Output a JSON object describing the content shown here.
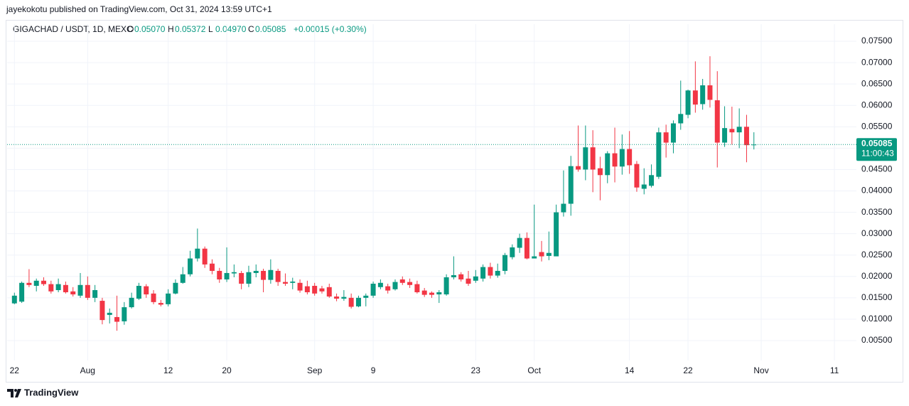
{
  "header": {
    "publisher": "jayekokotu published on TradingView.com, Oct 31, 2024 13:59 UTC+1",
    "logo_text": "TradingView"
  },
  "chart_data": {
    "type": "candlestick",
    "title": "GIGACHAD / USDT, 1D, MEXC",
    "ohlc_legend": [
      {
        "key": "O",
        "value": "0.05070"
      },
      {
        "key": "H",
        "value": "0.05372"
      },
      {
        "key": "L",
        "value": "0.04970"
      },
      {
        "key": "C",
        "value": "0.05085"
      }
    ],
    "change": "+0.00015 (+0.30%)",
    "up_color": "#089981",
    "down_color": "#f23645",
    "grid": true,
    "x": [
      "2024-07-22",
      "2024-07-23",
      "2024-07-24",
      "2024-07-25",
      "2024-07-26",
      "2024-07-27",
      "2024-07-28",
      "2024-07-29",
      "2024-07-30",
      "2024-07-31",
      "2024-08-01",
      "2024-08-02",
      "2024-08-03",
      "2024-08-04",
      "2024-08-05",
      "2024-08-06",
      "2024-08-07",
      "2024-08-08",
      "2024-08-09",
      "2024-08-10",
      "2024-08-11",
      "2024-08-12",
      "2024-08-13",
      "2024-08-14",
      "2024-08-15",
      "2024-08-16",
      "2024-08-17",
      "2024-08-18",
      "2024-08-19",
      "2024-08-20",
      "2024-08-21",
      "2024-08-22",
      "2024-08-23",
      "2024-08-24",
      "2024-08-25",
      "2024-08-26",
      "2024-08-27",
      "2024-08-28",
      "2024-08-29",
      "2024-08-30",
      "2024-08-31",
      "2024-09-01",
      "2024-09-02",
      "2024-09-03",
      "2024-09-04",
      "2024-09-05",
      "2024-09-06",
      "2024-09-07",
      "2024-09-08",
      "2024-09-09",
      "2024-09-10",
      "2024-09-11",
      "2024-09-12",
      "2024-09-13",
      "2024-09-14",
      "2024-09-15",
      "2024-09-16",
      "2024-09-17",
      "2024-09-18",
      "2024-09-19",
      "2024-09-20",
      "2024-09-21",
      "2024-09-22",
      "2024-09-23",
      "2024-09-24",
      "2024-09-25",
      "2024-09-26",
      "2024-09-27",
      "2024-09-28",
      "2024-09-29",
      "2024-09-30",
      "2024-10-01",
      "2024-10-02",
      "2024-10-03",
      "2024-10-04",
      "2024-10-05",
      "2024-10-06",
      "2024-10-07",
      "2024-10-08",
      "2024-10-09",
      "2024-10-10",
      "2024-10-11",
      "2024-10-12",
      "2024-10-13",
      "2024-10-14",
      "2024-10-15",
      "2024-10-16",
      "2024-10-17",
      "2024-10-18",
      "2024-10-19",
      "2024-10-20",
      "2024-10-21",
      "2024-10-22",
      "2024-10-23",
      "2024-10-24",
      "2024-10-25",
      "2024-10-26",
      "2024-10-27",
      "2024-10-28",
      "2024-10-29",
      "2024-10-30",
      "2024-10-31"
    ],
    "open": [
      0.0137,
      0.0141,
      0.0185,
      0.0178,
      0.019,
      0.0182,
      0.0168,
      0.018,
      0.0165,
      0.0155,
      0.018,
      0.015,
      0.0143,
      0.011,
      0.0105,
      0.0095,
      0.0128,
      0.0148,
      0.0177,
      0.016,
      0.0138,
      0.0135,
      0.016,
      0.0185,
      0.0205,
      0.0242,
      0.0265,
      0.023,
      0.0213,
      0.0193,
      0.0207,
      0.0208,
      0.0183,
      0.0208,
      0.0213,
      0.0192,
      0.0213,
      0.0187,
      0.0185,
      0.0185,
      0.0177,
      0.0178,
      0.0172,
      0.0175,
      0.0153,
      0.0148,
      0.015,
      0.013,
      0.015,
      0.0155,
      0.0175,
      0.0177,
      0.017,
      0.0193,
      0.0187,
      0.0182,
      0.0167,
      0.0162,
      0.0158,
      0.0158,
      0.0198,
      0.0205,
      0.0195,
      0.019,
      0.0195,
      0.0222,
      0.0202,
      0.0213,
      0.0245,
      0.0267,
      0.029,
      0.0242,
      0.0257,
      0.0248,
      0.0247,
      0.035,
      0.037,
      0.0458,
      0.045,
      0.0502,
      0.0453,
      0.0437,
      0.0488,
      0.0457,
      0.0498,
      0.0463,
      0.0405,
      0.0412,
      0.0433,
      0.0537,
      0.0513,
      0.0558,
      0.0578,
      0.0635,
      0.0603,
      0.0647,
      0.0612,
      0.0513,
      0.0545,
      0.0537,
      0.055,
      0.0507
    ],
    "high": [
      0.0162,
      0.0188,
      0.0217,
      0.0195,
      0.0198,
      0.019,
      0.0195,
      0.0188,
      0.0175,
      0.0208,
      0.02,
      0.018,
      0.015,
      0.0125,
      0.0155,
      0.014,
      0.0162,
      0.0185,
      0.0182,
      0.0168,
      0.0145,
      0.017,
      0.0193,
      0.0222,
      0.026,
      0.0312,
      0.027,
      0.024,
      0.022,
      0.0268,
      0.0228,
      0.0213,
      0.0225,
      0.0228,
      0.0218,
      0.024,
      0.0218,
      0.0207,
      0.0197,
      0.0193,
      0.019,
      0.0185,
      0.0178,
      0.0183,
      0.016,
      0.0168,
      0.016,
      0.0155,
      0.016,
      0.0188,
      0.0193,
      0.0183,
      0.0193,
      0.02,
      0.0195,
      0.019,
      0.0173,
      0.0165,
      0.0168,
      0.0205,
      0.0247,
      0.021,
      0.0213,
      0.0215,
      0.0228,
      0.0232,
      0.023,
      0.0255,
      0.0275,
      0.03,
      0.0303,
      0.0368,
      0.0283,
      0.0305,
      0.0368,
      0.0448,
      0.0482,
      0.0553,
      0.0553,
      0.0542,
      0.048,
      0.0493,
      0.0548,
      0.0532,
      0.054,
      0.047,
      0.0453,
      0.0462,
      0.0548,
      0.0555,
      0.0565,
      0.0658,
      0.0637,
      0.0703,
      0.0662,
      0.0715,
      0.068,
      0.0598,
      0.0597,
      0.0593,
      0.0578,
      0.05372
    ],
    "low": [
      0.0135,
      0.0138,
      0.0175,
      0.0165,
      0.0178,
      0.016,
      0.0163,
      0.016,
      0.0153,
      0.015,
      0.0145,
      0.014,
      0.0088,
      0.009,
      0.0073,
      0.0087,
      0.0125,
      0.0145,
      0.015,
      0.0135,
      0.013,
      0.013,
      0.0158,
      0.0183,
      0.02,
      0.0235,
      0.022,
      0.0205,
      0.0185,
      0.0187,
      0.0198,
      0.017,
      0.0175,
      0.0198,
      0.0163,
      0.0183,
      0.0178,
      0.0178,
      0.017,
      0.0162,
      0.0158,
      0.0155,
      0.016,
      0.015,
      0.0142,
      0.0143,
      0.0125,
      0.0128,
      0.013,
      0.015,
      0.017,
      0.016,
      0.0167,
      0.018,
      0.0173,
      0.016,
      0.0152,
      0.015,
      0.0138,
      0.0155,
      0.0193,
      0.0188,
      0.0178,
      0.0185,
      0.0188,
      0.0195,
      0.0197,
      0.0205,
      0.024,
      0.0255,
      0.024,
      0.0242,
      0.0235,
      0.0238,
      0.0247,
      0.034,
      0.0342,
      0.0445,
      0.0425,
      0.0397,
      0.0378,
      0.0418,
      0.042,
      0.0438,
      0.044,
      0.0398,
      0.0392,
      0.0408,
      0.0428,
      0.0478,
      0.0488,
      0.0543,
      0.057,
      0.0583,
      0.059,
      0.0595,
      0.0455,
      0.0503,
      0.0508,
      0.05,
      0.0467,
      0.0497
    ],
    "close": [
      0.0155,
      0.0185,
      0.018,
      0.019,
      0.0182,
      0.0165,
      0.0182,
      0.0163,
      0.0158,
      0.018,
      0.015,
      0.0168,
      0.0098,
      0.0115,
      0.0094,
      0.0128,
      0.015,
      0.0178,
      0.0158,
      0.014,
      0.0134,
      0.016,
      0.0185,
      0.0205,
      0.0242,
      0.0265,
      0.0228,
      0.0213,
      0.0193,
      0.0208,
      0.021,
      0.0183,
      0.021,
      0.0213,
      0.0192,
      0.0215,
      0.0187,
      0.0183,
      0.0188,
      0.0167,
      0.0163,
      0.016,
      0.0165,
      0.0153,
      0.0148,
      0.0152,
      0.0129,
      0.015,
      0.0155,
      0.0183,
      0.0185,
      0.0167,
      0.0187,
      0.0185,
      0.018,
      0.0163,
      0.0157,
      0.0157,
      0.0163,
      0.0198,
      0.0203,
      0.0193,
      0.0183,
      0.02,
      0.0222,
      0.0202,
      0.0213,
      0.025,
      0.0268,
      0.029,
      0.0242,
      0.0247,
      0.0247,
      0.0255,
      0.035,
      0.037,
      0.0458,
      0.045,
      0.0502,
      0.045,
      0.0437,
      0.0488,
      0.0457,
      0.0498,
      0.046,
      0.0408,
      0.0415,
      0.0437,
      0.0537,
      0.0513,
      0.0558,
      0.058,
      0.0635,
      0.0602,
      0.0647,
      0.0613,
      0.0513,
      0.0547,
      0.0537,
      0.055,
      0.0507,
      0.05085
    ],
    "xlim": [
      "2024-07-21",
      "2024-11-14"
    ],
    "xticks": [
      {
        "value": "2024-07-22",
        "label": "22"
      },
      {
        "value": "2024-08-01",
        "label": "Aug"
      },
      {
        "value": "2024-08-12",
        "label": "12"
      },
      {
        "value": "2024-08-20",
        "label": "20"
      },
      {
        "value": "2024-09-01",
        "label": "Sep"
      },
      {
        "value": "2024-09-09",
        "label": "9"
      },
      {
        "value": "2024-09-23",
        "label": "23"
      },
      {
        "value": "2024-10-01",
        "label": "Oct"
      },
      {
        "value": "2024-10-14",
        "label": "14"
      },
      {
        "value": "2024-10-22",
        "label": "22"
      },
      {
        "value": "2024-11-01",
        "label": "Nov"
      },
      {
        "value": "2024-11-11",
        "label": "11"
      }
    ],
    "ylim": [
      0.00034,
      0.079
    ],
    "yticks": [
      {
        "value": 0.005,
        "label": "0.00500"
      },
      {
        "value": 0.01,
        "label": "0.01000"
      },
      {
        "value": 0.015,
        "label": "0.01500"
      },
      {
        "value": 0.02,
        "label": "0.02000"
      },
      {
        "value": 0.025,
        "label": "0.02500"
      },
      {
        "value": 0.03,
        "label": "0.03000"
      },
      {
        "value": 0.035,
        "label": "0.03500"
      },
      {
        "value": 0.04,
        "label": "0.04000"
      },
      {
        "value": 0.045,
        "label": "0.04500"
      },
      {
        "value": 0.05,
        "label": "0.05000"
      },
      {
        "value": 0.055,
        "label": "0.05500"
      },
      {
        "value": 0.06,
        "label": "0.06000"
      },
      {
        "value": 0.065,
        "label": "0.06500"
      },
      {
        "value": 0.07,
        "label": "0.07000"
      },
      {
        "value": 0.075,
        "label": "0.07500"
      }
    ],
    "last_price": {
      "value": 0.05085,
      "label": "0.05085"
    },
    "countdown": "11:00:43"
  }
}
